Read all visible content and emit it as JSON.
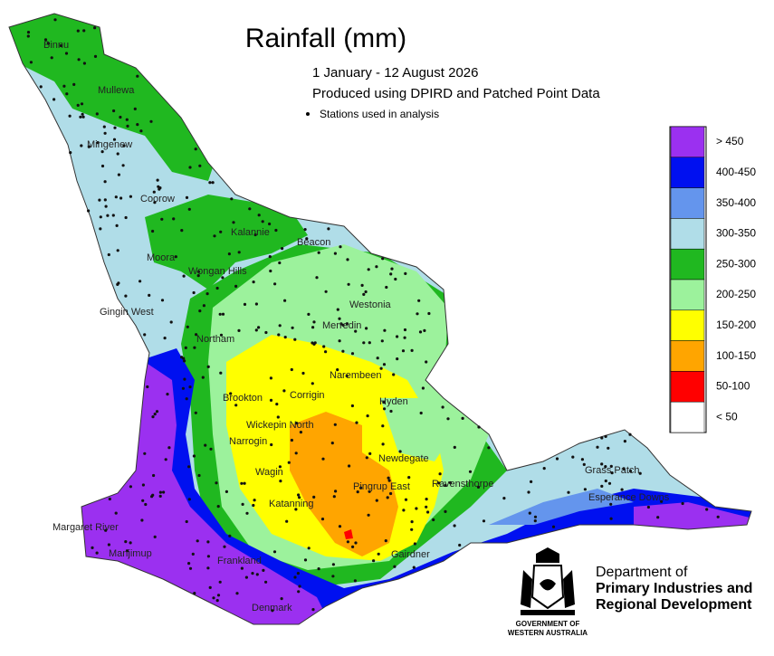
{
  "title": "Rainfall (mm)",
  "subtitle": [
    "1 January - 12 August 2026",
    "Produced using DPIRD and Patched Point Data"
  ],
  "stations_note": "Stations used in analysis",
  "legend": [
    {
      "label": "> 450",
      "color": "#9b30f0"
    },
    {
      "label": "400-450",
      "color": "#0010f0"
    },
    {
      "label": "350-400",
      "color": "#6495ed"
    },
    {
      "label": "300-350",
      "color": "#b0dde8"
    },
    {
      "label": "250-300",
      "color": "#20b820"
    },
    {
      "label": "200-250",
      "color": "#9cf29c"
    },
    {
      "label": "150-200",
      "color": "#ffff00"
    },
    {
      "label": "100-150",
      "color": "#ffa500"
    },
    {
      "label": "50-100",
      "color": "#ff0000"
    },
    {
      "label": "< 50",
      "color": "#ffffff"
    }
  ],
  "towns": [
    "Binnu",
    "Mullewa",
    "Mingenew",
    "Coorow",
    "Kalannie",
    "Beacon",
    "Moora",
    "Wongan Hills",
    "Gingin West",
    "Westonia",
    "Merredin",
    "Northam",
    "Narembeen",
    "Brookton",
    "Corrigin",
    "Hyden",
    "Wickepin North",
    "Narrogin",
    "Newdegate",
    "Wagin",
    "Pingrup East",
    "Ravensthorpe",
    "Grass Patch",
    "Katanning",
    "Esperance Downs",
    "Margaret River",
    "Manjimup",
    "Frankland",
    "Gairdner",
    "Denmark"
  ],
  "department": [
    "Department of",
    "Primary Industries and",
    "Regional Development"
  ],
  "government": [
    "GOVERNMENT OF",
    "WESTERN AUSTRALIA"
  ]
}
